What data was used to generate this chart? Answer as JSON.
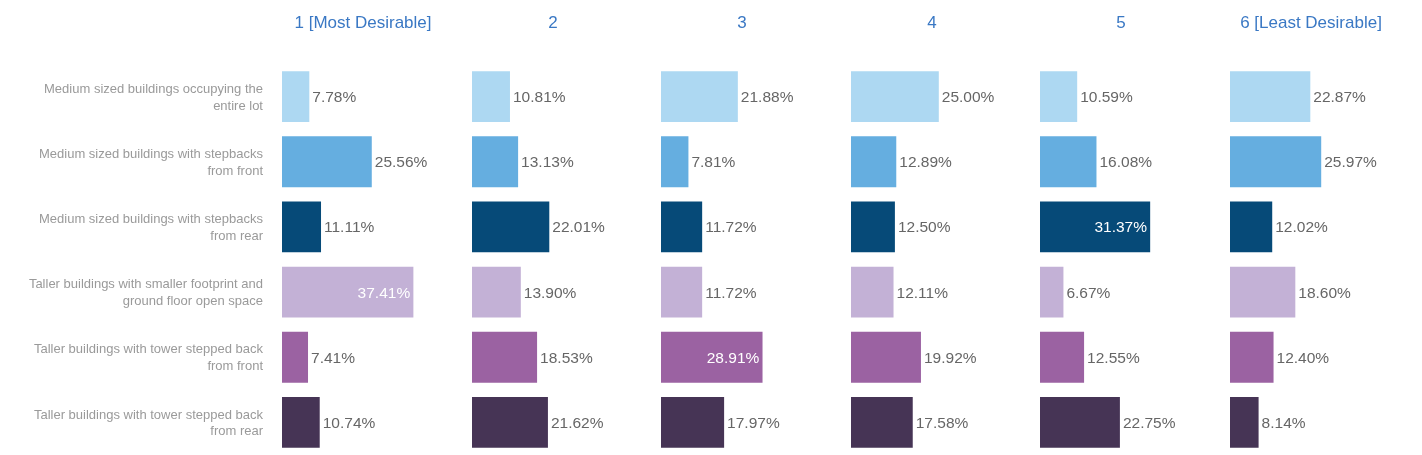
{
  "chart_data": [
    {
      "type": "bar",
      "orientation": "horizontal",
      "title": "1 [Most Desirable]",
      "categories": [
        "Medium sized buildings occupying the entire lot",
        "Medium sized buildings with stepbacks from front",
        "Medium sized buildings with stepbacks from rear",
        "Taller buildings with smaller footprint and ground floor open space",
        "Taller buildings with tower stepped back from front",
        "Taller buildings with tower stepped back from rear"
      ],
      "values": [
        7.78,
        25.56,
        11.11,
        37.41,
        7.41,
        10.74
      ],
      "value_labels": [
        "7.78%",
        "25.56%",
        "11.11%",
        "37.41%",
        "7.41%",
        "10.74%"
      ],
      "colors": [
        "#add8f2",
        "#65aee0",
        "#064a78",
        "#c3b1d6",
        "#9b62a2",
        "#463455"
      ],
      "tick_labels": "y"
    },
    {
      "type": "bar",
      "orientation": "horizontal",
      "title": "2",
      "categories": [
        null,
        null,
        null,
        null,
        null,
        null
      ],
      "values": [
        10.81,
        13.13,
        22.01,
        13.9,
        18.53,
        21.62
      ],
      "value_labels": [
        "10.81%",
        "13.13%",
        "22.01%",
        "13.90%",
        "18.53%",
        "21.62%"
      ],
      "colors": [
        "#add8f2",
        "#65aee0",
        "#064a78",
        "#c3b1d6",
        "#9b62a2",
        "#463455"
      ],
      "tick_labels": false
    },
    {
      "type": "bar",
      "orientation": "horizontal",
      "title": "3",
      "categories": [
        null,
        null,
        null,
        null,
        null,
        null
      ],
      "values": [
        21.88,
        7.81,
        11.72,
        11.72,
        28.91,
        17.97
      ],
      "value_labels": [
        "21.88%",
        "7.81%",
        "11.72%",
        "11.72%",
        "28.91%",
        "17.97%"
      ],
      "colors": [
        "#add8f2",
        "#65aee0",
        "#064a78",
        "#c3b1d6",
        "#9b62a2",
        "#463455"
      ],
      "tick_labels": false
    },
    {
      "type": "bar",
      "orientation": "horizontal",
      "title": "4",
      "categories": [
        null,
        null,
        null,
        null,
        null,
        null
      ],
      "values": [
        25.0,
        12.89,
        12.5,
        12.11,
        19.92,
        17.58
      ],
      "value_labels": [
        "25.00%",
        "12.89%",
        "12.50%",
        "12.11%",
        "19.92%",
        "17.58%"
      ],
      "colors": [
        "#add8f2",
        "#65aee0",
        "#064a78",
        "#c3b1d6",
        "#9b62a2",
        "#463455"
      ],
      "tick_labels": false
    },
    {
      "type": "bar",
      "orientation": "horizontal",
      "title": "5",
      "categories": [
        null,
        null,
        null,
        null,
        null,
        null
      ],
      "values": [
        10.59,
        16.08,
        31.37,
        6.67,
        12.55,
        22.75
      ],
      "value_labels": [
        "10.59%",
        "16.08%",
        "31.37%",
        "6.67%",
        "12.55%",
        "22.75%"
      ],
      "colors": [
        "#add8f2",
        "#65aee0",
        "#064a78",
        "#c3b1d6",
        "#9b62a2",
        "#463455"
      ],
      "tick_labels": false
    },
    {
      "type": "bar",
      "orientation": "horizontal",
      "title": "6 [Least Desirable]",
      "categories": [
        null,
        null,
        null,
        null,
        null,
        null
      ],
      "values": [
        22.87,
        25.97,
        12.02,
        18.6,
        12.4,
        8.14
      ],
      "value_labels": [
        "22.87%",
        "25.97%",
        "12.02%",
        "18.60%",
        "12.40%",
        "8.14%"
      ],
      "colors": [
        "#add8f2",
        "#65aee0",
        "#064a78",
        "#c3b1d6",
        "#9b62a2",
        "#463455"
      ],
      "tick_labels": false
    }
  ]
}
